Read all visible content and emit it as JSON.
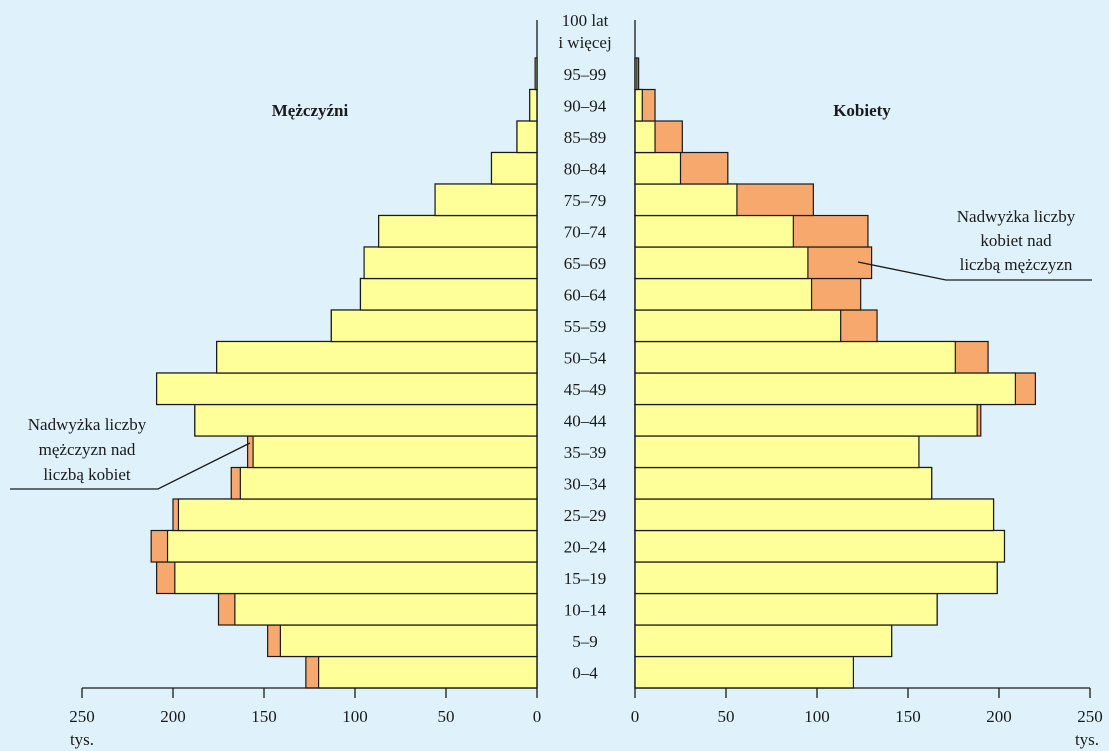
{
  "chart_data": {
    "type": "bar",
    "subtype": "population-pyramid",
    "categories": [
      "0–4",
      "5–9",
      "10–14",
      "15–19",
      "20–24",
      "25–29",
      "30–34",
      "35–39",
      "40–44",
      "45–49",
      "50–54",
      "55–59",
      "60–64",
      "65–69",
      "70–74",
      "75–79",
      "80–84",
      "85–89",
      "90–94",
      "95–99"
    ],
    "top_category_lines": [
      "100 lat",
      "i więcej"
    ],
    "panels": {
      "left_title": "Mężczyźni",
      "right_title": "Kobiety"
    },
    "series": [
      {
        "name": "Mężczyźni",
        "values": [
          127,
          148,
          175,
          209,
          212,
          200,
          168,
          159,
          188,
          209,
          176,
          113,
          97,
          95,
          87,
          56,
          25,
          11,
          4,
          1
        ]
      },
      {
        "name": "Kobiety",
        "values": [
          120,
          141,
          166,
          199,
          203,
          197,
          163,
          156,
          190,
          220,
          194,
          133,
          124,
          130,
          128,
          98,
          51,
          26,
          11,
          2
        ]
      }
    ],
    "xlim": [
      0,
      250
    ],
    "x_ticks": [
      0,
      50,
      100,
      150,
      200,
      250
    ],
    "x_tick_labels": [
      "0",
      "50",
      "100",
      "150",
      "200",
      "250"
    ],
    "x_unit": "tys.",
    "colors": {
      "common": "#ffff99",
      "excess": "#f7a86c",
      "background": "#dff2fb"
    },
    "annotations": [
      {
        "text_lines": [
          "Nadwyżka liczby",
          "kobiet nad",
          "liczbą mężczyzn"
        ],
        "target_category": "65–69",
        "side": "right"
      },
      {
        "text_lines": [
          "Nadwyżka liczby",
          "mężczyzn nad",
          "liczbą kobiet"
        ],
        "target_category": "35–39",
        "side": "left"
      }
    ]
  }
}
